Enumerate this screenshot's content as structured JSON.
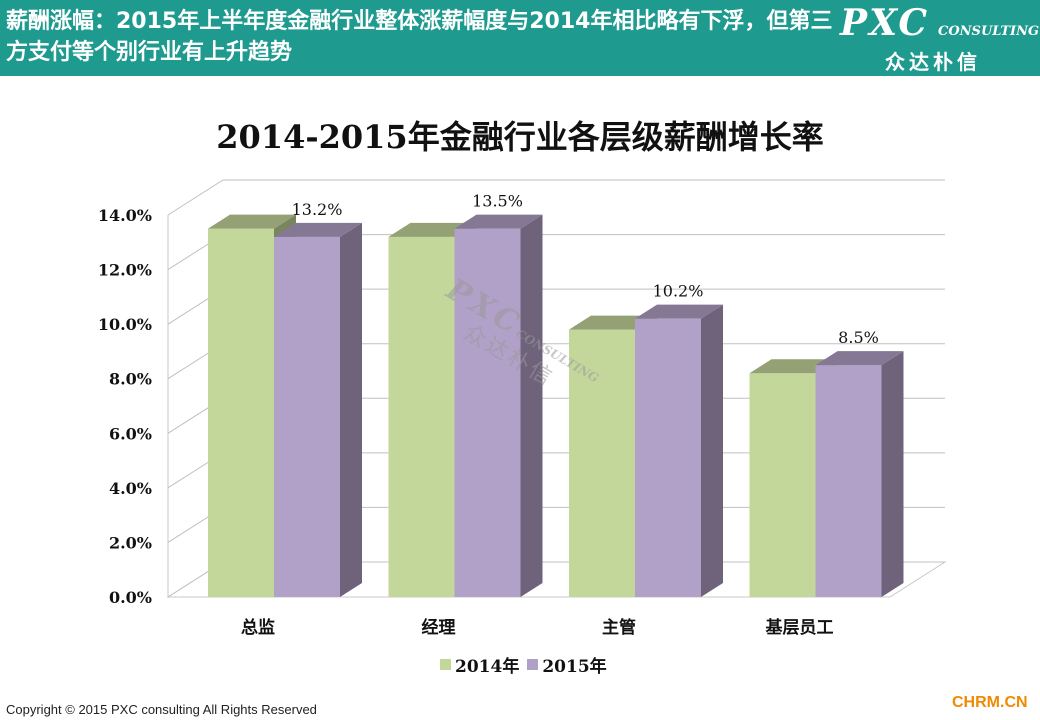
{
  "banner": {
    "title": "薪酬涨幅：2015年上半年度金融行业整体涨薪幅度与2014年相比略有下浮，但第三方支付等个别行业有上升趋势",
    "logo_main": "PXC",
    "logo_sub": "CONSULTING",
    "logo_cn": "众达朴信"
  },
  "watermark": {
    "main": "PXC",
    "sub": "CONSULTING",
    "cn": "众达朴信"
  },
  "footer": {
    "copyright": "Copyright © 2015  PXC consulting All Rights Reserved",
    "site": "CHRM.CN"
  },
  "colors": {
    "banner": "#1e9a8f",
    "series_2014": "#c4d79b",
    "series_2015": "#b1a0c7"
  },
  "chart_data": {
    "type": "bar",
    "title": "2014-2015年金融行业各层级薪酬增长率",
    "categories": [
      "总监",
      "经理",
      "主管",
      "基层员工"
    ],
    "series": [
      {
        "name": "2014年",
        "values": [
          13.5,
          13.2,
          9.8,
          8.2
        ],
        "color": "#c4d79b"
      },
      {
        "name": "2015年",
        "values": [
          13.2,
          13.5,
          10.2,
          8.5
        ],
        "color": "#b1a0c7",
        "labels": [
          "13.2%",
          "13.5%",
          "10.2%",
          "8.5%"
        ]
      }
    ],
    "yticks": [
      "0.0%",
      "2.0%",
      "4.0%",
      "6.0%",
      "8.0%",
      "10.0%",
      "12.0%",
      "14.0%"
    ],
    "ylim": [
      0,
      14
    ],
    "grid": true,
    "legend": "bottom",
    "style": "3d-clustered-column"
  }
}
